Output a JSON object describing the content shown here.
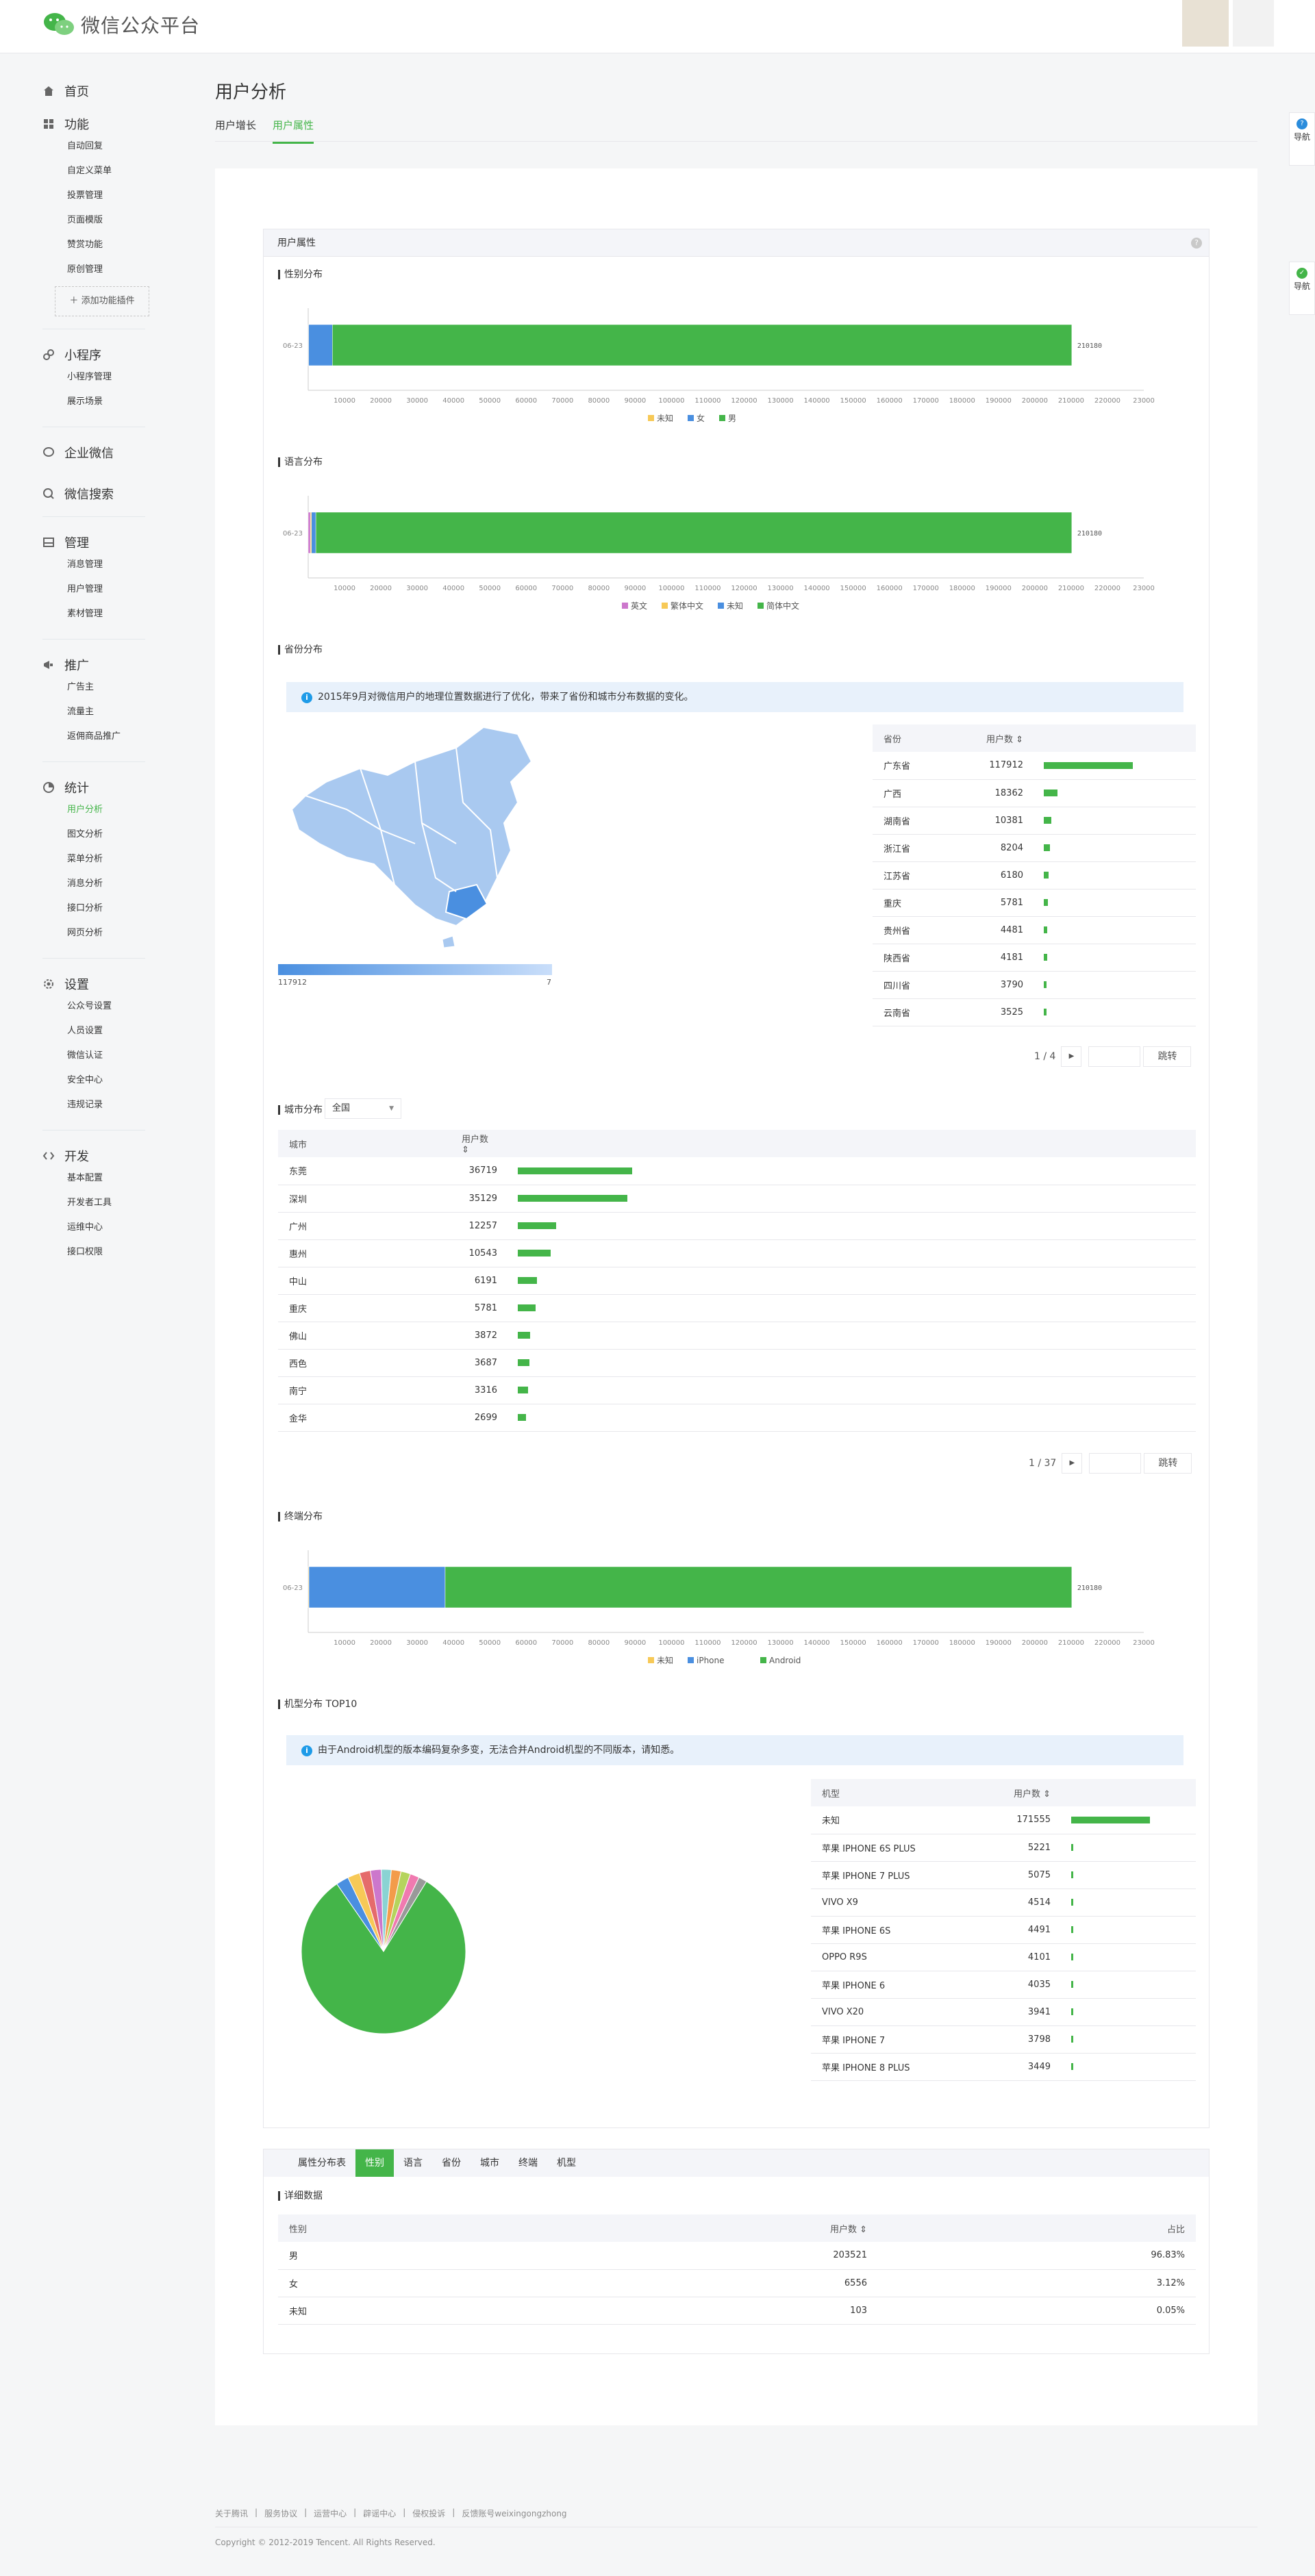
{
  "app": {
    "title": "微信公众平台"
  },
  "sidebar": {
    "home": "首页",
    "function": {
      "label": "功能",
      "items": [
        "自动回复",
        "自定义菜单",
        "投票管理",
        "页面模版",
        "赞赏功能",
        "原创管理"
      ],
      "add_plugin": "添加功能插件"
    },
    "miniprogram": {
      "label": "小程序",
      "items": [
        "小程序管理",
        "展示场景"
      ]
    },
    "work_wechat": "企业微信",
    "wechat_search": "微信搜索",
    "manage": {
      "label": "管理",
      "items": [
        "消息管理",
        "用户管理",
        "素材管理"
      ]
    },
    "promote": {
      "label": "推广",
      "items": [
        "广告主",
        "流量主",
        "返佣商品推广"
      ]
    },
    "stats": {
      "label": "统计",
      "items": [
        "用户分析",
        "图文分析",
        "菜单分析",
        "消息分析",
        "接口分析",
        "网页分析"
      ]
    },
    "settings": {
      "label": "设置",
      "items": [
        "公众号设置",
        "人员设置",
        "微信认证",
        "安全中心",
        "违规记录"
      ]
    },
    "dev": {
      "label": "开发",
      "items": [
        "基本配置",
        "开发者工具",
        "运维中心",
        "接口权限"
      ]
    }
  },
  "page": {
    "title": "用户分析",
    "tabs": [
      "用户增长",
      "用户属性"
    ]
  },
  "section": {
    "title": "用户属性",
    "help": "?"
  },
  "gender": {
    "title": "性别分布",
    "date": "06-23",
    "total_label": "210180",
    "legend": [
      "未知",
      "女",
      "男"
    ]
  },
  "language": {
    "title": "语言分布",
    "date": "06-23",
    "total_label": "210180",
    "legend": [
      "英文",
      "繁体中文",
      "未知",
      "简体中文"
    ]
  },
  "axis_ticks": [
    "10000",
    "20000",
    "30000",
    "40000",
    "50000",
    "60000",
    "70000",
    "80000",
    "90000",
    "100000",
    "110000",
    "120000",
    "130000",
    "140000",
    "150000",
    "160000",
    "170000",
    "180000",
    "190000",
    "200000",
    "210000",
    "220000",
    "23000"
  ],
  "province": {
    "title": "省份分布",
    "notice": "2015年9月对微信用户的地理位置数据进行了优化，带来了省份和城市分布数据的变化。",
    "scale_max": "117912",
    "scale_min": "7",
    "headers": [
      "省份",
      "用户数"
    ],
    "rows": [
      {
        "name": "广东省",
        "value": 117912
      },
      {
        "name": "广西",
        "value": 18362
      },
      {
        "name": "湖南省",
        "value": 10381
      },
      {
        "name": "浙江省",
        "value": 8204
      },
      {
        "name": "江苏省",
        "value": 6180
      },
      {
        "name": "重庆",
        "value": 5781
      },
      {
        "name": "贵州省",
        "value": 4481
      },
      {
        "name": "陕西省",
        "value": 4181
      },
      {
        "name": "四川省",
        "value": 3790
      },
      {
        "name": "云南省",
        "value": 3525
      }
    ],
    "pager": "1 / 4",
    "go": "跳转"
  },
  "city": {
    "title": "城市分布",
    "select": "全国",
    "headers": [
      "城市",
      "用户数"
    ],
    "rows": [
      {
        "name": "东莞",
        "value": 36719
      },
      {
        "name": "深圳",
        "value": 35129
      },
      {
        "name": "广州",
        "value": 12257
      },
      {
        "name": "惠州",
        "value": 10543
      },
      {
        "name": "中山",
        "value": 6191
      },
      {
        "name": "重庆",
        "value": 5781
      },
      {
        "name": "佛山",
        "value": 3872
      },
      {
        "name": "西色",
        "value": 3687
      },
      {
        "name": "南宁",
        "value": 3316
      },
      {
        "name": "金华",
        "value": 2699
      }
    ],
    "pager": "1 / 37",
    "go": "跳转"
  },
  "terminal": {
    "title": "终端分布",
    "date": "06-23",
    "total_label": "210180",
    "legend": [
      "未知",
      "iPhone",
      "Android"
    ]
  },
  "model": {
    "title": "机型分布 TOP10",
    "notice": "由于Android机型的版本编码复杂多变，无法合并Android机型的不同版本，请知悉。",
    "headers": [
      "机型",
      "用户数"
    ],
    "rows": [
      {
        "name": "未知",
        "value": 171555
      },
      {
        "name": "苹果 IPHONE 6S PLUS",
        "value": 5221
      },
      {
        "name": "苹果 IPHONE 7 PLUS",
        "value": 5075
      },
      {
        "name": "VIVO X9",
        "value": 4514
      },
      {
        "name": "苹果 IPHONE 6S",
        "value": 4491
      },
      {
        "name": "OPPO R9S",
        "value": 4101
      },
      {
        "name": "苹果 IPHONE 6",
        "value": 4035
      },
      {
        "name": "VIVO X20",
        "value": 3941
      },
      {
        "name": "苹果 IPHONE 7",
        "value": 3798
      },
      {
        "name": "苹果 IPHONE 8 PLUS",
        "value": 3449
      }
    ]
  },
  "detail": {
    "tab_label": "属性分布表",
    "tabs": [
      "性别",
      "语言",
      "省份",
      "城市",
      "终端",
      "机型"
    ],
    "title": "详细数据",
    "headers": [
      "性别",
      "用户数",
      "占比"
    ],
    "rows": [
      {
        "name": "男",
        "value": "203521",
        "pct": "96.83%"
      },
      {
        "name": "女",
        "value": "6556",
        "pct": "3.12%"
      },
      {
        "name": "未知",
        "value": "103",
        "pct": "0.05%"
      }
    ]
  },
  "footer": {
    "links": [
      "关于腾讯",
      "服务协议",
      "运营中心",
      "辟谣中心",
      "侵权投诉",
      "反馈账号weixingongzhong"
    ],
    "seps": [
      "|",
      "|",
      "|",
      "|",
      "|"
    ],
    "copyright": "Copyright © 2012-2019 Tencent. All Rights Reserved."
  },
  "float": {
    "b1": "导航",
    "b2": "导航"
  },
  "colors": {
    "green": "#44b549",
    "blue": "#4a8fe0",
    "yellow": "#f7c957",
    "pink": "#cc77cc"
  },
  "chart_data": [
    {
      "type": "bar",
      "orientation": "horizontal",
      "stacked": true,
      "title": "性别分布",
      "categories": [
        "06-23"
      ],
      "series": [
        {
          "name": "未知",
          "values": [
            103
          ]
        },
        {
          "name": "女",
          "values": [
            6556
          ]
        },
        {
          "name": "男",
          "values": [
            203521
          ]
        }
      ],
      "xlim": [
        0,
        230000
      ]
    },
    {
      "type": "bar",
      "orientation": "horizontal",
      "stacked": true,
      "title": "语言分布",
      "categories": [
        "06-23"
      ],
      "series": [
        {
          "name": "英文",
          "values": [
            600
          ]
        },
        {
          "name": "繁体中文",
          "values": [
            300
          ]
        },
        {
          "name": "未知",
          "values": [
            1200
          ]
        },
        {
          "name": "简体中文",
          "values": [
            208080
          ]
        }
      ],
      "xlim": [
        0,
        230000
      ]
    },
    {
      "type": "bar",
      "orientation": "horizontal",
      "stacked": true,
      "title": "终端分布",
      "categories": [
        "06-23"
      ],
      "series": [
        {
          "name": "未知",
          "values": [
            200
          ]
        },
        {
          "name": "iPhone",
          "values": [
            37500
          ]
        },
        {
          "name": "Android",
          "values": [
            172480
          ]
        }
      ],
      "xlim": [
        0,
        230000
      ]
    },
    {
      "type": "pie",
      "title": "机型分布 TOP10",
      "categories": [
        "未知",
        "苹果 IPHONE 6S PLUS",
        "苹果 IPHONE 7 PLUS",
        "VIVO X9",
        "苹果 IPHONE 6S",
        "OPPO R9S",
        "苹果 IPHONE 6",
        "VIVO X20",
        "苹果 IPHONE 7",
        "苹果 IPHONE 8 PLUS"
      ],
      "values": [
        171555,
        5221,
        5075,
        4514,
        4491,
        4101,
        4035,
        3941,
        3798,
        3449
      ]
    }
  ]
}
